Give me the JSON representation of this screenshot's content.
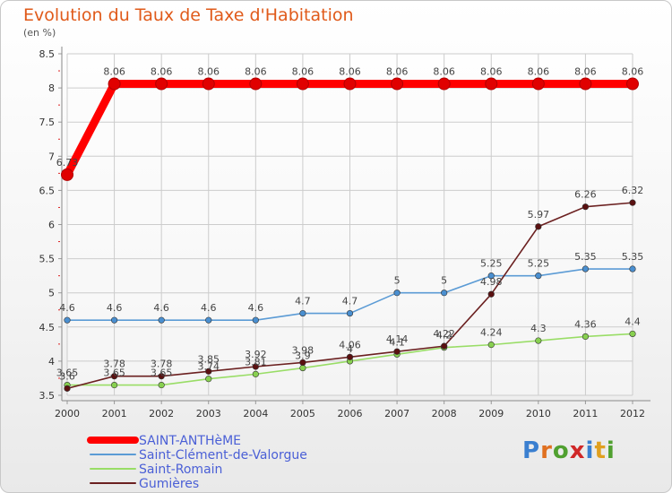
{
  "title": "Evolution du Taux de Taxe d'Habitation",
  "subtitle": "(en %)",
  "logo": {
    "text": "Proxiti",
    "letter_colors": [
      "#3a7fd0",
      "#e07020",
      "#50a030",
      "#d02828",
      "#3a7fd0",
      "#e0a020",
      "#50a030"
    ]
  },
  "chart_data": {
    "type": "line",
    "title": "Evolution du Taux de Taxe d'Habitation",
    "ylabel": "(en %)",
    "xlabel": "",
    "x": [
      "2000",
      "2001",
      "2002",
      "2003",
      "2004",
      "2005",
      "2006",
      "2007",
      "2008",
      "2009",
      "2010",
      "2011",
      "2012"
    ],
    "ylim": [
      3.5,
      8.5
    ],
    "yticks": [
      "3.5",
      "4",
      "4.5",
      "5",
      "5.5",
      "6",
      "6.5",
      "7",
      "7.5",
      "8",
      "8.5"
    ],
    "grid": true,
    "series": [
      {
        "name": "SAINT-ANTHèME",
        "color": "#ff0000",
        "marker": "#e00000",
        "width": "thick",
        "values": [
          6.73,
          8.06,
          8.06,
          8.06,
          8.06,
          8.06,
          8.06,
          8.06,
          8.06,
          8.06,
          8.06,
          8.06,
          8.06
        ],
        "labels": [
          "6.73",
          "8.06",
          "8.06",
          "8.06",
          "8.06",
          "8.06",
          "8.06",
          "8.06",
          "8.06",
          "8.06",
          "8.06",
          "8.06",
          "8.06"
        ]
      },
      {
        "name": "Saint-Clément-de-Valorgue",
        "color": "#5b9bd5",
        "marker": "#4a8fd0",
        "width": "thin",
        "values": [
          4.6,
          4.6,
          4.6,
          4.6,
          4.6,
          4.7,
          4.7,
          5,
          5,
          5.25,
          5.25,
          5.35,
          5.35
        ],
        "labels": [
          "4.6",
          "4.6",
          "4.6",
          "4.6",
          "4.6",
          "4.7",
          "4.7",
          "5",
          "5",
          "5.25",
          "5.25",
          "5.35",
          "5.35"
        ]
      },
      {
        "name": "Saint-Romain",
        "color": "#99dd66",
        "marker": "#88d050",
        "width": "thin",
        "values": [
          3.65,
          3.65,
          3.65,
          3.74,
          3.81,
          3.9,
          4.0,
          4.1,
          4.2,
          4.24,
          4.3,
          4.36,
          4.4
        ],
        "labels": [
          "3.65",
          "3.65",
          "3.65",
          "3.74",
          "3.81",
          "3.9",
          "4",
          "4.1",
          "4.2",
          "4.24",
          "4.3",
          "4.36",
          "4.4"
        ]
      },
      {
        "name": "Gumières",
        "color": "#6b2020",
        "marker": "#5a1010",
        "width": "thin",
        "values": [
          3.6,
          3.78,
          3.78,
          3.85,
          3.92,
          3.98,
          4.06,
          4.14,
          4.22,
          4.98,
          5.97,
          6.26,
          6.32
        ],
        "labels": [
          "3.6",
          "3.78",
          "3.78",
          "3.85",
          "3.92",
          "3.98",
          "4.06",
          "4.14",
          "4.22",
          "4.98",
          "5.97",
          "6.26",
          "6.32"
        ]
      }
    ],
    "legend_position": "bottom-left"
  }
}
